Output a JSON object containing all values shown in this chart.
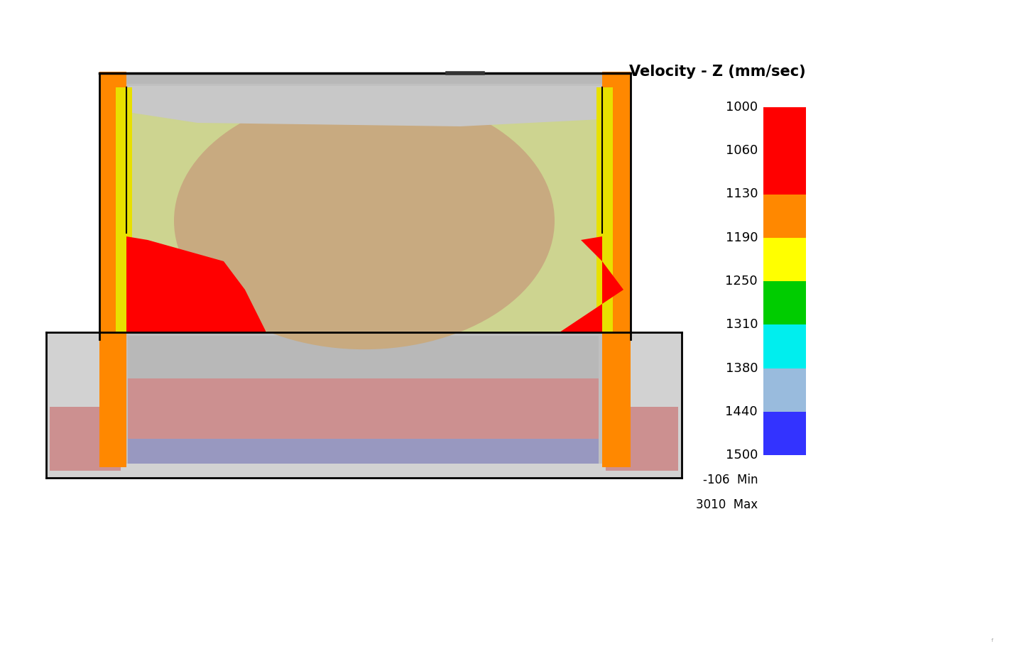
{
  "title": "Velocity - Z (mm/sec)",
  "colorbar_labels": [
    "1500",
    "1440",
    "1380",
    "1310",
    "1250",
    "1190",
    "1130",
    "1060",
    "1000"
  ],
  "colorbar_colors": [
    "#ff0000",
    "#ff8800",
    "#ffff00",
    "#00cc00",
    "#00eeee",
    "#99bbdd",
    "#3333ff",
    "#000088"
  ],
  "min_label": "-106",
  "max_label": "3010",
  "bg_color": "#ffffff",
  "olive_light": "#cdd490",
  "olive_mid": "#c8cc80",
  "tan_color": "#c8aa80",
  "gray_top": "#c0c0c0",
  "gray_die": "#d2d2d2",
  "gray_recess": "#c4c4c4",
  "gray_inner": "#b8b8b8",
  "orange_wall": "#ff8800",
  "yellow_strip": "#e8e000",
  "red_zone": "#ff0000",
  "pink_layer": "#cc9090",
  "lavender_layer": "#9898c0",
  "pink_die": "#cc9090"
}
